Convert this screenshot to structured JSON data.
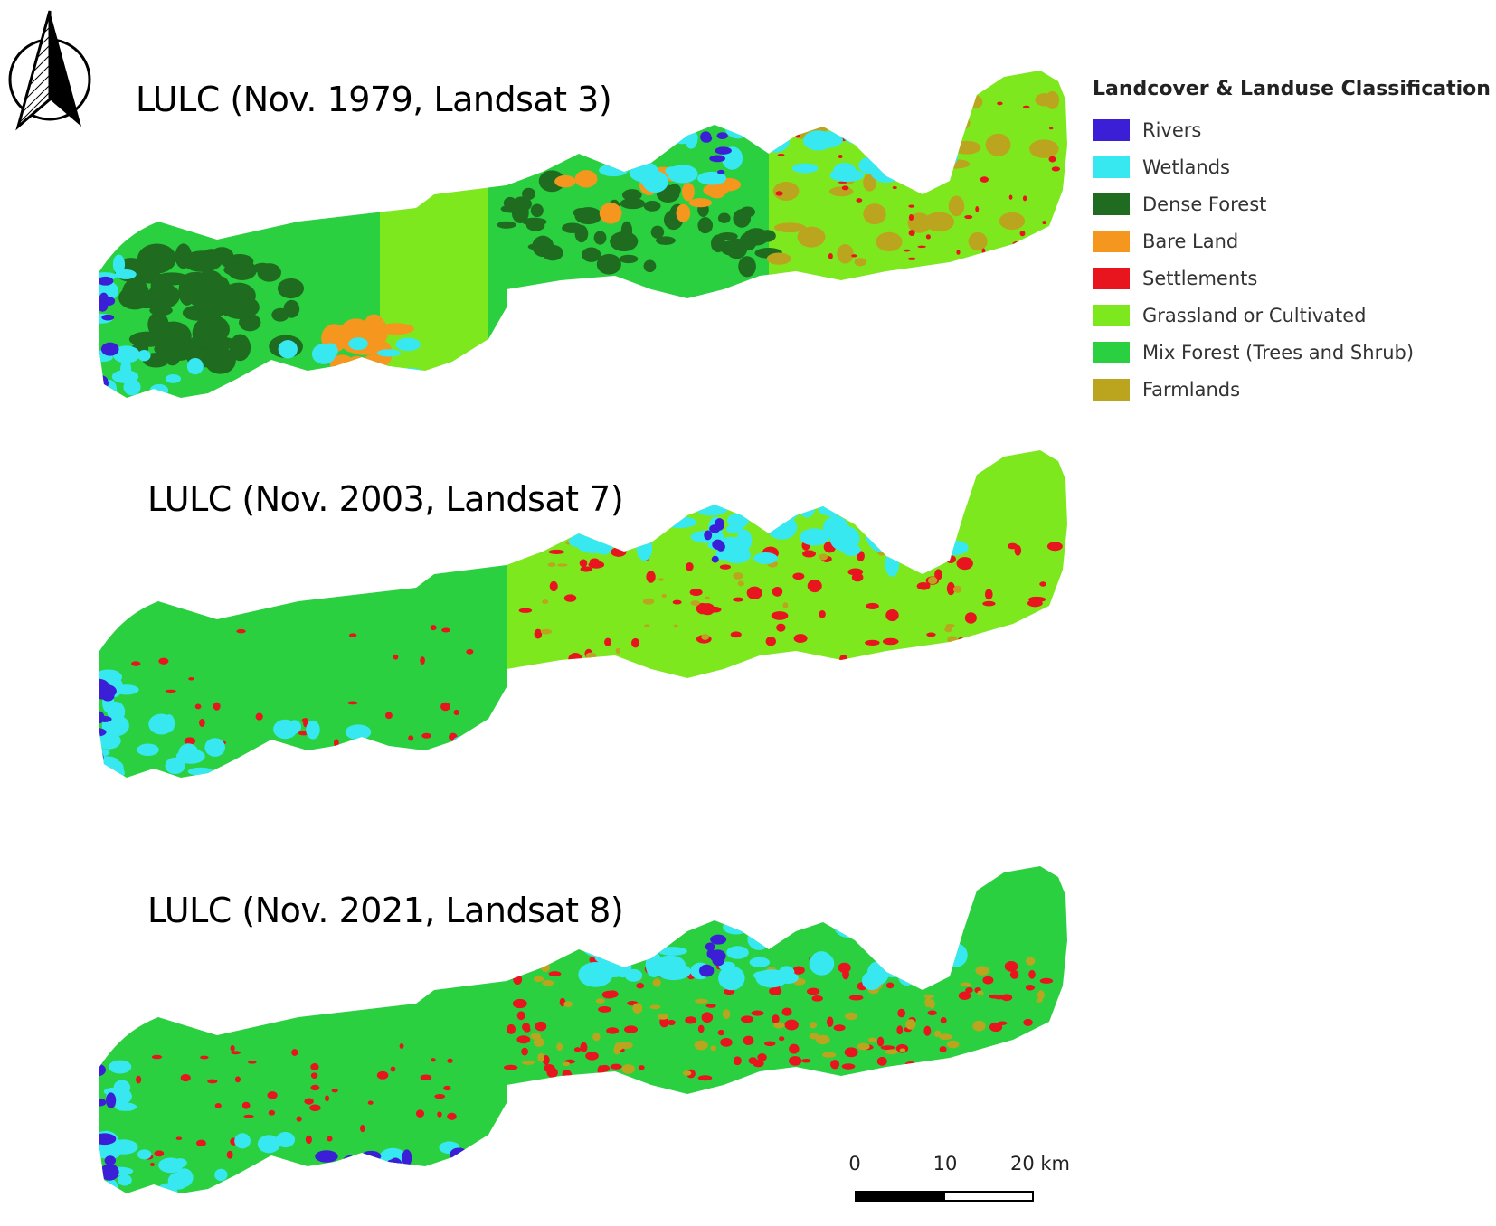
{
  "maps": [
    {
      "title": "LULC (Nov. 1979, Landsat 3)",
      "dominant": "mix_forest_1979"
    },
    {
      "title": "LULC (Nov. 2003, Landsat 7)",
      "dominant": "mix_forest"
    },
    {
      "title": "LULC (Nov. 2021, Landsat 8)",
      "dominant": "mix_forest"
    }
  ],
  "legend": {
    "title": "Landcover & Landuse Classification",
    "items": [
      {
        "label": "Rivers",
        "color": "#3a1fd6"
      },
      {
        "label": "Wetlands",
        "color": "#38e8f0"
      },
      {
        "label": "Dense Forest",
        "color": "#1f6b1f"
      },
      {
        "label": "Bare Land",
        "color": "#f5961e"
      },
      {
        "label": "Settlements",
        "color": "#e8141e"
      },
      {
        "label": "Grassland or Cultivated",
        "color": "#7de81e"
      },
      {
        "label": "Mix Forest (Trees and Shrub)",
        "color": "#2ad040"
      },
      {
        "label": "Farmlands",
        "color": "#bca51e"
      }
    ]
  },
  "scale": {
    "labels": [
      "0",
      "10",
      "20 km"
    ]
  },
  "north_arrow": {
    "icon": "north-arrow-icon"
  }
}
